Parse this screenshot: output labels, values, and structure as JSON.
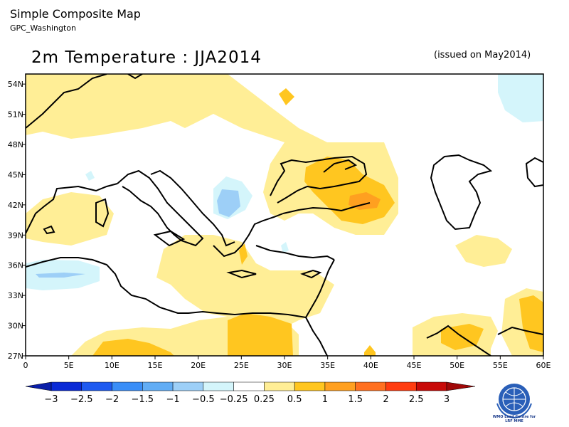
{
  "header": {
    "app_title": "Simple Composite Map",
    "source": "GPC_Washington",
    "map_title": "2m Temperature : JJA2014",
    "issued": "(issued on May2014)"
  },
  "map": {
    "lon_labels": [
      "0",
      "5E",
      "10E",
      "15E",
      "20E",
      "25E",
      "30E",
      "35E",
      "40E",
      "45E",
      "50E",
      "55E",
      "60E"
    ],
    "lat_labels": [
      "54N",
      "51N",
      "48N",
      "45N",
      "42N",
      "39N",
      "36N",
      "33N",
      "30N",
      "27N"
    ],
    "lon_range": [
      0,
      60
    ],
    "lat_range": [
      27,
      55
    ]
  },
  "colorbar": {
    "ticks": [
      "−3",
      "−2.5",
      "−2",
      "−1.5",
      "−1",
      "−0.5",
      "−0.25",
      "0.25",
      "0.5",
      "1",
      "1.5",
      "2",
      "2.5",
      "3"
    ],
    "colors": [
      "#0a2ad6",
      "#1e5af0",
      "#3a8ef7",
      "#62adf5",
      "#9dcff7",
      "#d4f5fb",
      "#ffffff",
      "#ffee96",
      "#ffc620",
      "#ffa020",
      "#ff7020",
      "#ff3c10",
      "#c80a08"
    ]
  },
  "logo": {
    "caption_line1": "WMO Lead Centre for",
    "caption_line2": "LRF MME"
  }
}
